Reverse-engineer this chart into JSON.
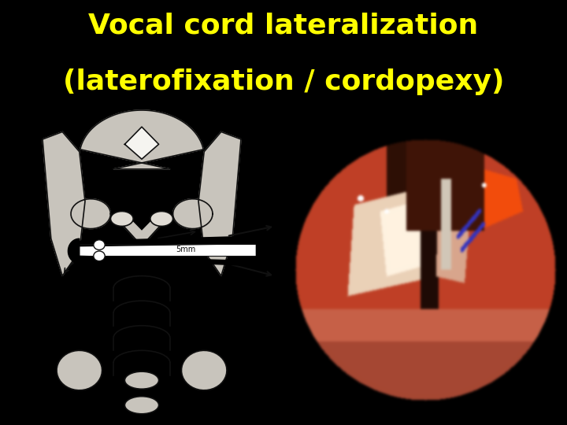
{
  "title_line1": "Vocal cord lateralization",
  "title_line2": "(laterofixation / cordopexy)",
  "title_color": "#FFFF00",
  "title_bg_color": "#000000",
  "title_fontsize": 26,
  "title_fontweight": "bold",
  "fig_bg_color": "#000000",
  "figsize": [
    7.2,
    5.4
  ],
  "dpi": 100
}
